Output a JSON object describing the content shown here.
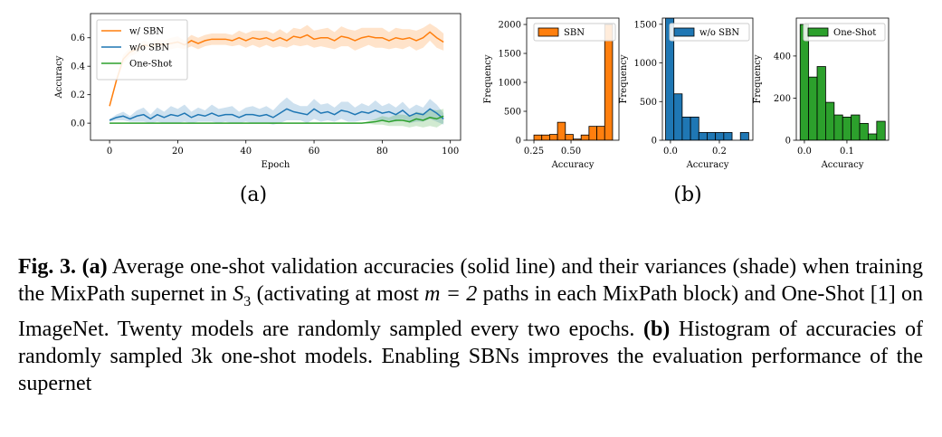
{
  "chart_data": [
    {
      "type": "line",
      "xlabel": "Epoch",
      "ylabel": "Accuracy",
      "legend": "upper left",
      "x": [
        0,
        2,
        4,
        6,
        8,
        10,
        12,
        14,
        16,
        18,
        20,
        22,
        24,
        26,
        28,
        30,
        32,
        34,
        36,
        38,
        40,
        42,
        44,
        46,
        48,
        50,
        52,
        54,
        56,
        58,
        60,
        62,
        64,
        66,
        68,
        70,
        72,
        74,
        76,
        78,
        80,
        82,
        84,
        86,
        88,
        90,
        92,
        94,
        96,
        98
      ],
      "xlim": [
        -5.6,
        103
      ],
      "xticks": [
        0,
        20,
        40,
        60,
        80,
        100
      ],
      "ylim": [
        -0.12,
        0.77
      ],
      "yticks": [
        {
          "value": 0,
          "label": "0.0"
        },
        0.2,
        0.4,
        0.6
      ],
      "series": [
        {
          "name": "w/ SBN",
          "color": "#ff7f0e",
          "values": [
            0.12,
            0.3,
            0.45,
            0.5,
            0.52,
            0.55,
            0.54,
            0.56,
            0.55,
            0.56,
            0.57,
            0.55,
            0.58,
            0.56,
            0.58,
            0.59,
            0.59,
            0.59,
            0.58,
            0.6,
            0.58,
            0.6,
            0.59,
            0.6,
            0.58,
            0.6,
            0.58,
            0.61,
            0.6,
            0.62,
            0.59,
            0.6,
            0.6,
            0.58,
            0.61,
            0.6,
            0.58,
            0.6,
            0.61,
            0.6,
            0.6,
            0.58,
            0.6,
            0.59,
            0.6,
            0.58,
            0.6,
            0.64,
            0.6,
            0.57
          ],
          "spread": [
            0.01,
            0.02,
            0.03,
            0.03,
            0.03,
            0.03,
            0.03,
            0.03,
            0.03,
            0.04,
            0.04,
            0.03,
            0.04,
            0.04,
            0.04,
            0.04,
            0.04,
            0.04,
            0.04,
            0.05,
            0.05,
            0.05,
            0.06,
            0.05,
            0.05,
            0.06,
            0.05,
            0.06,
            0.06,
            0.07,
            0.06,
            0.06,
            0.07,
            0.06,
            0.07,
            0.06,
            0.07,
            0.07,
            0.06,
            0.07,
            0.07,
            0.06,
            0.07,
            0.07,
            0.06,
            0.07,
            0.07,
            0.06,
            0.07,
            0.06
          ]
        },
        {
          "name": "w/o SBN",
          "color": "#1f77b4",
          "values": [
            0.02,
            0.04,
            0.05,
            0.03,
            0.05,
            0.06,
            0.03,
            0.06,
            0.04,
            0.06,
            0.05,
            0.07,
            0.04,
            0.06,
            0.05,
            0.07,
            0.05,
            0.06,
            0.06,
            0.04,
            0.06,
            0.06,
            0.05,
            0.06,
            0.04,
            0.07,
            0.1,
            0.08,
            0.07,
            0.06,
            0.1,
            0.07,
            0.08,
            0.06,
            0.09,
            0.08,
            0.06,
            0.08,
            0.07,
            0.09,
            0.07,
            0.08,
            0.06,
            0.09,
            0.05,
            0.07,
            0.06,
            0.1,
            0.07,
            0.03
          ],
          "spread": [
            0.01,
            0.02,
            0.03,
            0.02,
            0.04,
            0.05,
            0.03,
            0.05,
            0.04,
            0.06,
            0.05,
            0.06,
            0.04,
            0.05,
            0.04,
            0.06,
            0.05,
            0.05,
            0.06,
            0.04,
            0.05,
            0.06,
            0.05,
            0.06,
            0.05,
            0.07,
            0.08,
            0.06,
            0.05,
            0.06,
            0.07,
            0.06,
            0.06,
            0.05,
            0.06,
            0.07,
            0.05,
            0.06,
            0.05,
            0.07,
            0.05,
            0.06,
            0.05,
            0.06,
            0.05,
            0.06,
            0.05,
            0.07,
            0.06,
            0.04
          ]
        },
        {
          "name": "One-Shot",
          "color": "#2ca02c",
          "values": [
            0,
            0,
            0,
            0,
            0,
            0,
            0,
            0,
            0,
            0,
            0,
            0,
            0,
            0,
            0,
            0,
            0,
            0,
            0,
            0,
            0,
            0,
            0,
            0,
            0,
            0,
            0,
            0,
            0,
            0,
            0,
            0,
            0,
            0,
            0,
            0,
            0,
            0,
            0.005,
            0.01,
            0.02,
            0.01,
            0.02,
            0.02,
            0.01,
            0.03,
            0.02,
            0.04,
            0.03,
            0.05
          ],
          "spread": [
            0,
            0,
            0,
            0,
            0,
            0,
            0,
            0,
            0,
            0,
            0,
            0,
            0,
            0,
            0,
            0,
            0,
            0,
            0,
            0,
            0,
            0,
            0,
            0,
            0,
            0,
            0,
            0,
            0,
            0,
            0,
            0,
            0,
            0,
            0,
            0,
            0,
            0,
            0.01,
            0.02,
            0.03,
            0.03,
            0.04,
            0.04,
            0.04,
            0.05,
            0.05,
            0.06,
            0.06,
            0.05
          ]
        }
      ]
    },
    {
      "type": "histogram",
      "xlabel": "Accuracy",
      "ylabel": "Frequency",
      "legend": "upper right",
      "bins": [
        0.25,
        0.303,
        0.356,
        0.409,
        0.462,
        0.515,
        0.568,
        0.621,
        0.674,
        0.727,
        0.78
      ],
      "xlim": [
        0.201,
        0.823
      ],
      "xticks": [
        0.25,
        {
          "value": 0.5,
          "label": "0.50"
        }
      ],
      "ylim": [
        0,
        2110
      ],
      "yticks": [
        0,
        500,
        1000,
        1500,
        2000
      ],
      "series": [
        {
          "name": "SBN",
          "color": "#ff7f0e",
          "values": [
            90,
            90,
            100,
            310,
            100,
            20,
            90,
            240,
            240,
            2000
          ]
        }
      ]
    },
    {
      "type": "histogram",
      "xlabel": "Accuracy",
      "ylabel": "Frequency",
      "legend": "upper right",
      "bins": [
        -0.02,
        0.014,
        0.048,
        0.082,
        0.116,
        0.15,
        0.184,
        0.218,
        0.252,
        0.286,
        0.32
      ],
      "xlim": [
        -0.033,
        0.337
      ],
      "xticks": [
        {
          "value": 0,
          "label": "0.0"
        },
        0.2
      ],
      "ylim": [
        0,
        1580
      ],
      "yticks": [
        0,
        500,
        1000,
        1500
      ],
      "series": [
        {
          "name": "w/o SBN",
          "color": "#1f77b4",
          "values": [
            1580,
            600,
            300,
            300,
            100,
            100,
            100,
            100,
            0,
            100
          ]
        }
      ]
    },
    {
      "type": "histogram",
      "xlabel": "Accuracy",
      "ylabel": "Frequency",
      "legend": "upper right",
      "bins": [
        -0.01,
        0.01,
        0.03,
        0.05,
        0.07,
        0.09,
        0.11,
        0.13,
        0.15,
        0.17,
        0.19
      ],
      "xlim": [
        -0.019,
        0.198
      ],
      "xticks": [
        {
          "value": 0,
          "label": "0.0"
        },
        0.1
      ],
      "ylim": [
        0,
        580
      ],
      "yticks": [
        0,
        200,
        400
      ],
      "series": [
        {
          "name": "One-Shot",
          "color": "#2ca02c",
          "values": [
            550,
            300,
            350,
            180,
            120,
            110,
            120,
            80,
            30,
            90
          ]
        }
      ]
    }
  ],
  "panels": [
    "(a)",
    "(b)"
  ],
  "caption": {
    "fig_label": "Fig. 3.",
    "a_label": "(a)",
    "a_text1": "Average one-shot validation accuracies (solid line) and their variances (shade) when training the MixPath supernet in",
    "math1": "S",
    "math1_sub": "3",
    "a_text2": "(activating at most",
    "math2": "m = 2",
    "a_text3": "paths in each MixPath block) and One-Shot [1] on ImageNet. Twenty models are randomly sampled every two epochs.",
    "b_label": "(b)",
    "b_text": "Histogram of accuracies of randomly sampled 3k one-shot models. Enabling SBNs improves the evaluation performance of the supernet"
  }
}
